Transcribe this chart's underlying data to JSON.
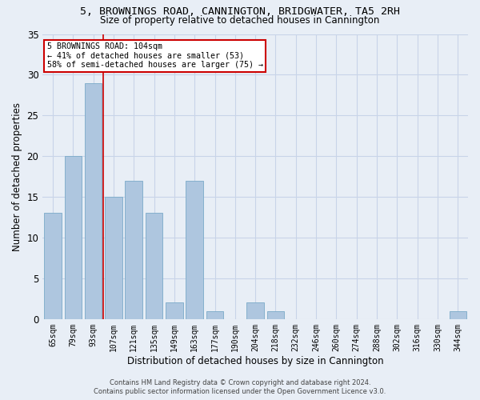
{
  "title1": "5, BROWNINGS ROAD, CANNINGTON, BRIDGWATER, TA5 2RH",
  "title2": "Size of property relative to detached houses in Cannington",
  "xlabel": "Distribution of detached houses by size in Cannington",
  "ylabel": "Number of detached properties",
  "bins": [
    "65sqm",
    "79sqm",
    "93sqm",
    "107sqm",
    "121sqm",
    "135sqm",
    "149sqm",
    "163sqm",
    "177sqm",
    "190sqm",
    "204sqm",
    "218sqm",
    "232sqm",
    "246sqm",
    "260sqm",
    "274sqm",
    "288sqm",
    "302sqm",
    "316sqm",
    "330sqm",
    "344sqm"
  ],
  "values": [
    13,
    20,
    29,
    15,
    17,
    13,
    2,
    17,
    1,
    0,
    2,
    1,
    0,
    0,
    0,
    0,
    0,
    0,
    0,
    0,
    1
  ],
  "bar_color": "#aec6df",
  "bar_edge_color": "#7aaac8",
  "vline_color": "#cc0000",
  "vline_pos": 2.5,
  "annotation_lines": [
    "5 BROWNINGS ROAD: 104sqm",
    "← 41% of detached houses are smaller (53)",
    "58% of semi-detached houses are larger (75) →"
  ],
  "annotation_box_color": "#ffffff",
  "annotation_box_edge": "#cc0000",
  "ylim": [
    0,
    35
  ],
  "yticks": [
    0,
    5,
    10,
    15,
    20,
    25,
    30,
    35
  ],
  "grid_color": "#c8d4e8",
  "background_color": "#e8eef6",
  "title_fontsize": 9.5,
  "subtitle_fontsize": 8.5,
  "footer1": "Contains HM Land Registry data © Crown copyright and database right 2024.",
  "footer2": "Contains public sector information licensed under the Open Government Licence v3.0."
}
